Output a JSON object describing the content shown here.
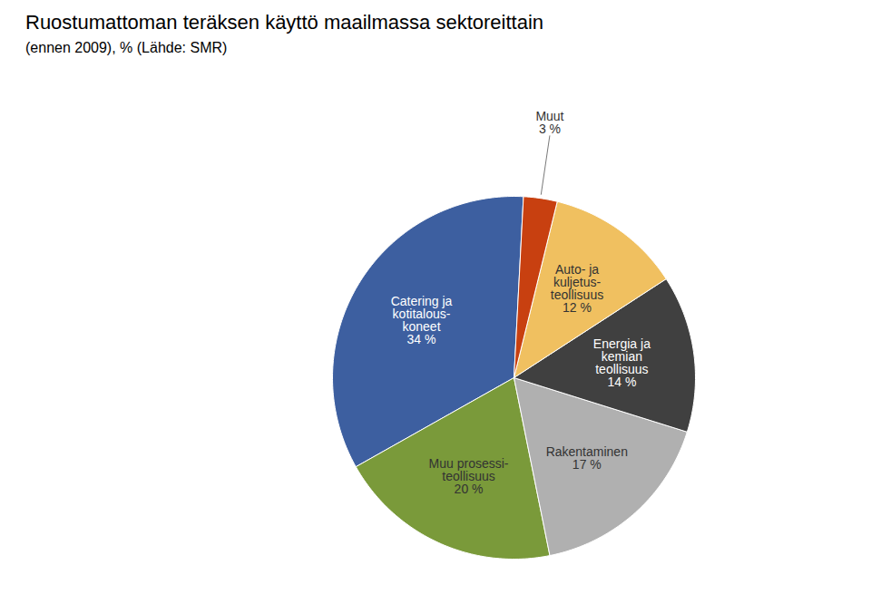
{
  "chart_data": {
    "type": "pie",
    "title": "Ruostumattoman teräksen käyttö maailmassa sektoreittain",
    "subtitle": "(ennen 2009), % (Lähde: SMR)",
    "categories": [
      "Catering ja\nkotitalous-\nkoneet",
      "Muu prosessi-\nteollisuus",
      "Rakentaminen",
      "Energia ja\nkemian\nteollisuus",
      "Auto- ja\nkuljetus-\nteollisuus",
      "Muut"
    ],
    "values": [
      34,
      20,
      17,
      14,
      12,
      3
    ],
    "value_labels": [
      "34 %",
      "20 %",
      "17 %",
      "14 %",
      "12 %",
      "3 %"
    ],
    "colors": [
      "#3d5fa0",
      "#7a9a3a",
      "#b0b0b0",
      "#404040",
      "#f0c060",
      "#c84010"
    ],
    "data_labels": true
  }
}
